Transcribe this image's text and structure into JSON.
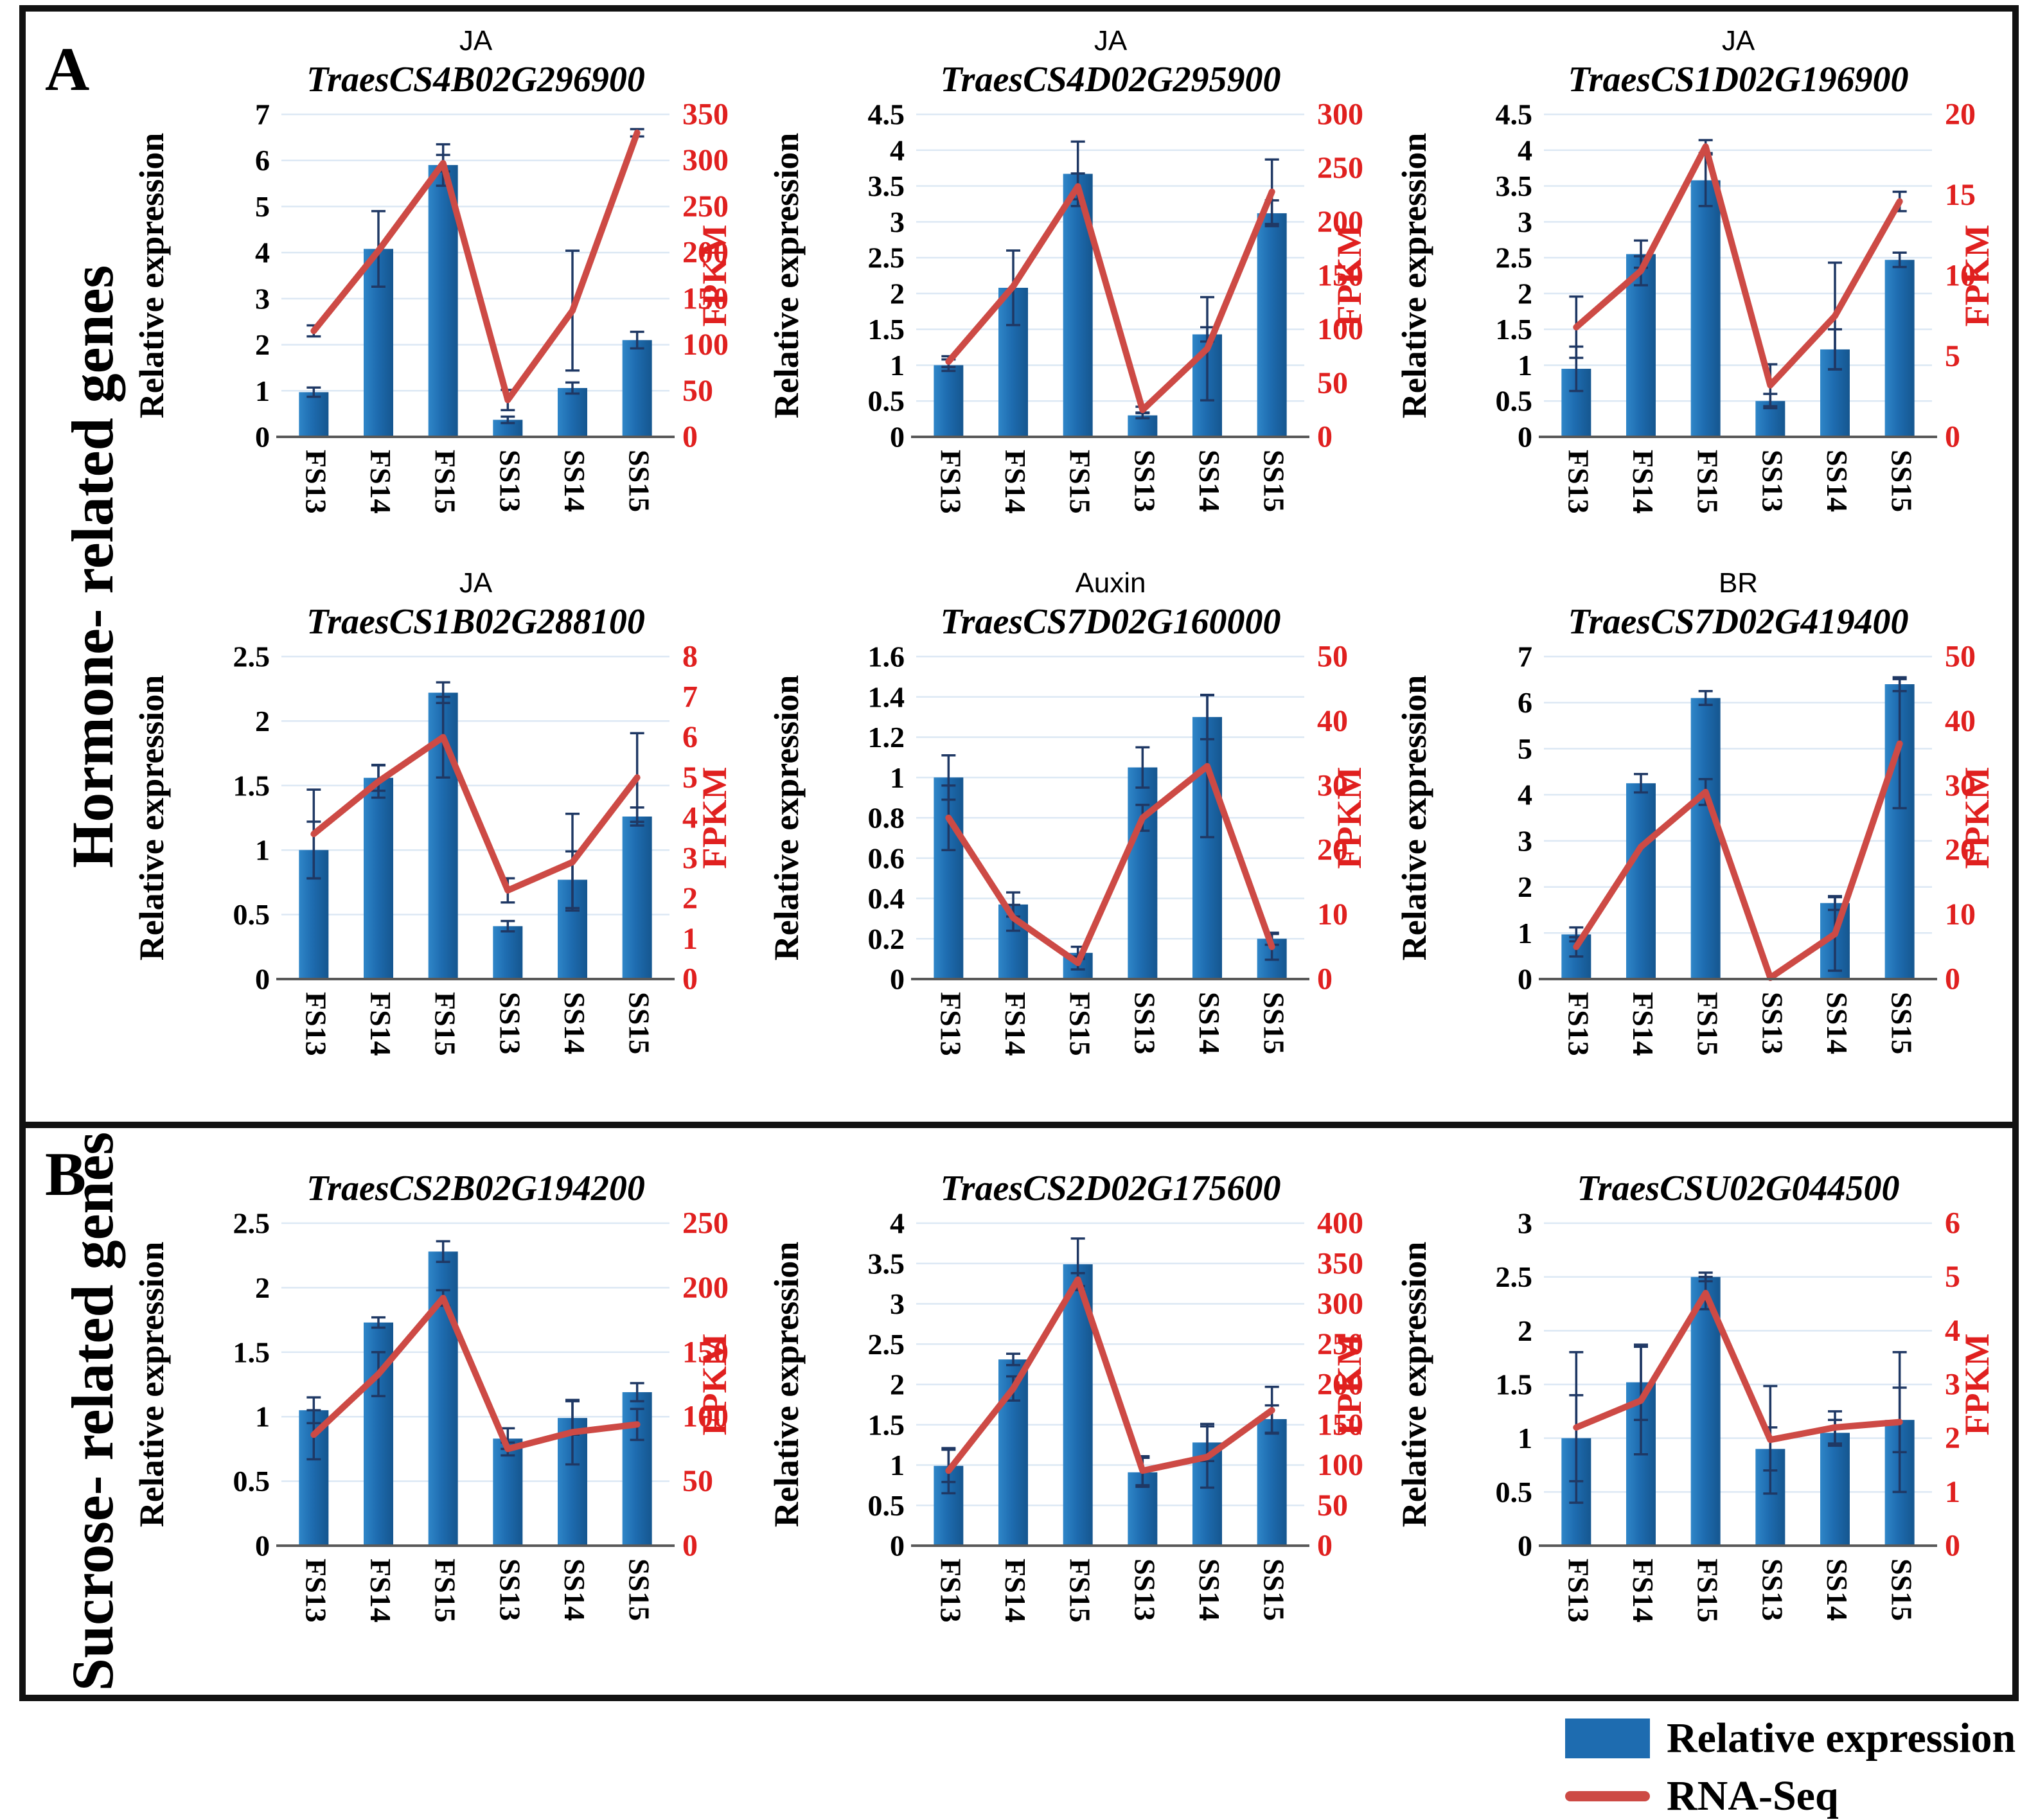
{
  "panels": [
    {
      "label": "A",
      "side_label": "Hormone- related genes"
    },
    {
      "label": "B",
      "side_label": "Sucrose- related genes"
    }
  ],
  "legend": {
    "bar_label": "Relative expression",
    "line_label": "RNA-Seq"
  },
  "axis_titles": {
    "left": "Relative expression",
    "right": "FPKM"
  },
  "categories": [
    "FS13",
    "FS14",
    "FS15",
    "SS13",
    "SS14",
    "SS15"
  ],
  "colors": {
    "bar_fill": "#1e6cb0",
    "bar_fill_light": "#2f86c8",
    "bar_fill_dark": "#15568f",
    "line_red": "#cd4a45",
    "axis_label_red": "#e0201f",
    "error_bar": "#1f3864",
    "gridline": "#dce8f4",
    "axis_line": "#595959",
    "text_black": "#000000",
    "panel_border": "#121212"
  },
  "chart_data": [
    {
      "type": "bar+line",
      "panel": "A",
      "row": 0,
      "col": 0,
      "hormone": "JA",
      "gene": "TraesCS4B02G296900",
      "left_axis": {
        "label": "Relative expression",
        "min": 0,
        "max": 7,
        "step": 1
      },
      "right_axis": {
        "label": "FPKM",
        "min": 0,
        "max": 350,
        "step": 50
      },
      "bars": [
        0.97,
        4.08,
        5.9,
        0.37,
        1.06,
        2.1
      ],
      "bar_err": [
        0.1,
        0.82,
        0.45,
        0.07,
        0.12,
        0.18
      ],
      "line": [
        115,
        202,
        297,
        40,
        137,
        330
      ],
      "line_err": [
        6,
        0,
        9,
        11,
        65,
        4
      ]
    },
    {
      "type": "bar+line",
      "panel": "A",
      "row": 0,
      "col": 1,
      "hormone": "JA",
      "gene": "TraesCS4D02G295900",
      "left_axis": {
        "label": "Relative expression",
        "min": 0,
        "max": 4.5,
        "step": 0.5
      },
      "right_axis": {
        "label": "FPKM",
        "min": 0,
        "max": 300,
        "step": 50
      },
      "bars": [
        1.0,
        2.08,
        3.67,
        0.3,
        1.43,
        3.12
      ],
      "bar_err": [
        0.08,
        0.52,
        0.45,
        0.04,
        0.1,
        0.18
      ],
      "line": [
        70,
        140,
        233,
        25,
        82,
        228
      ],
      "line_err": [
        5,
        0,
        12,
        3,
        48,
        30
      ]
    },
    {
      "type": "bar+line",
      "panel": "A",
      "row": 0,
      "col": 2,
      "hormone": "JA",
      "gene": "TraesCS1D02G196900",
      "left_axis": {
        "label": "Relative expression",
        "min": 0,
        "max": 4.5,
        "step": 0.5
      },
      "right_axis": {
        "label": "FPKM",
        "min": 0,
        "max": 20,
        "step": 5
      },
      "bars": [
        0.95,
        2.55,
        3.58,
        0.5,
        1.22,
        2.47
      ],
      "bar_err": [
        0.31,
        0.19,
        0.36,
        0.1,
        0.28,
        0.1
      ],
      "line": [
        6.8,
        10.3,
        18,
        3.2,
        7.5,
        14.6
      ],
      "line_err": [
        1.9,
        0.9,
        0.4,
        1.3,
        3.3,
        0.6
      ]
    },
    {
      "type": "bar+line",
      "panel": "A",
      "row": 1,
      "col": 0,
      "hormone": "JA",
      "gene": "TraesCS1B02G288100",
      "left_axis": {
        "label": "Relative expression",
        "min": 0,
        "max": 2.5,
        "step": 0.5
      },
      "right_axis": {
        "label": "FPKM",
        "min": 0,
        "max": 8,
        "step": 1
      },
      "bars": [
        1.0,
        1.56,
        2.22,
        0.41,
        0.77,
        1.26
      ],
      "bar_err": [
        0.22,
        0.1,
        0.08,
        0.04,
        0.22,
        0.07
      ],
      "line": [
        3.6,
        4.9,
        6.0,
        2.2,
        2.9,
        5.0
      ],
      "line_err": [
        1.1,
        0.4,
        1.0,
        0.3,
        1.2,
        1.1
      ]
    },
    {
      "type": "bar+line",
      "panel": "A",
      "row": 1,
      "col": 1,
      "hormone": "Auxin",
      "gene": "TraesCS7D02G160000",
      "left_axis": {
        "label": "Relative expression",
        "min": 0,
        "max": 1.6,
        "step": 0.2
      },
      "right_axis": {
        "label": "FPKM",
        "min": 0,
        "max": 50,
        "step": 10
      },
      "bars": [
        1.0,
        0.37,
        0.13,
        1.05,
        1.3,
        0.2
      ],
      "bar_err": [
        0.11,
        0.06,
        0.03,
        0.1,
        0.11,
        0.03
      ],
      "line": [
        25,
        9.5,
        2.5,
        25,
        33,
        5
      ],
      "line_err": [
        5,
        2,
        1,
        2,
        11,
        2
      ]
    },
    {
      "type": "bar+line",
      "panel": "A",
      "row": 1,
      "col": 2,
      "hormone": "BR",
      "gene": "TraesCS7D02G419400",
      "left_axis": {
        "label": "Relative expression",
        "min": 0,
        "max": 7,
        "step": 1
      },
      "right_axis": {
        "label": "FPKM",
        "min": 0,
        "max": 50,
        "step": 10
      },
      "bars": [
        0.97,
        4.25,
        6.1,
        0.02,
        1.65,
        6.4
      ],
      "bar_err": [
        0.15,
        0.2,
        0.15,
        0,
        0.15,
        0.15
      ],
      "line": [
        5,
        20.5,
        29,
        0.2,
        7,
        36.5
      ],
      "line_err": [
        1.5,
        0,
        2,
        0,
        5.7,
        10
      ]
    },
    {
      "type": "bar+line",
      "panel": "B",
      "row": 0,
      "col": 0,
      "hormone": "",
      "gene": "TraesCS2B02G194200",
      "left_axis": {
        "label": "Relative expression",
        "min": 0,
        "max": 2.5,
        "step": 0.5
      },
      "right_axis": {
        "label": "FPKM",
        "min": 0,
        "max": 250,
        "step": 50
      },
      "bars": [
        1.05,
        1.73,
        2.28,
        0.83,
        0.99,
        1.19
      ],
      "bar_err": [
        0.1,
        0.04,
        0.08,
        0.08,
        0.13,
        0.07
      ],
      "line": [
        86,
        133,
        192,
        75,
        88,
        94
      ],
      "line_err": [
        19,
        17,
        6,
        5,
        25,
        12
      ]
    },
    {
      "type": "bar+line",
      "panel": "B",
      "row": 0,
      "col": 1,
      "hormone": "",
      "gene": "TraesCS2D02G175600",
      "left_axis": {
        "label": "Relative expression",
        "min": 0,
        "max": 4,
        "step": 0.5
      },
      "right_axis": {
        "label": "FPKM",
        "min": 0,
        "max": 400,
        "step": 50
      },
      "bars": [
        0.99,
        2.31,
        3.49,
        0.91,
        1.28,
        1.57
      ],
      "bar_err": [
        0.2,
        0.07,
        0.32,
        0.18,
        0.23,
        0.17
      ],
      "line": [
        93,
        195,
        330,
        93,
        110,
        168
      ],
      "line_err": [
        28,
        15,
        8,
        18,
        38,
        29
      ]
    },
    {
      "type": "bar+line",
      "panel": "B",
      "row": 0,
      "col": 2,
      "hormone": "",
      "gene": "TraesCSU02G044500",
      "left_axis": {
        "label": "Relative expression",
        "min": 0,
        "max": 3,
        "step": 0.5
      },
      "right_axis": {
        "label": "FPKM",
        "min": 0,
        "max": 6,
        "step": 1
      },
      "bars": [
        1.0,
        1.52,
        2.5,
        0.9,
        1.05,
        1.17
      ],
      "bar_err": [
        0.4,
        0.35,
        0.04,
        0.2,
        0.12,
        0.3
      ],
      "line": [
        2.2,
        2.7,
        4.7,
        1.97,
        2.2,
        2.3
      ],
      "line_err": [
        1.4,
        1.0,
        0.3,
        1.0,
        0.3,
        1.3
      ]
    }
  ]
}
